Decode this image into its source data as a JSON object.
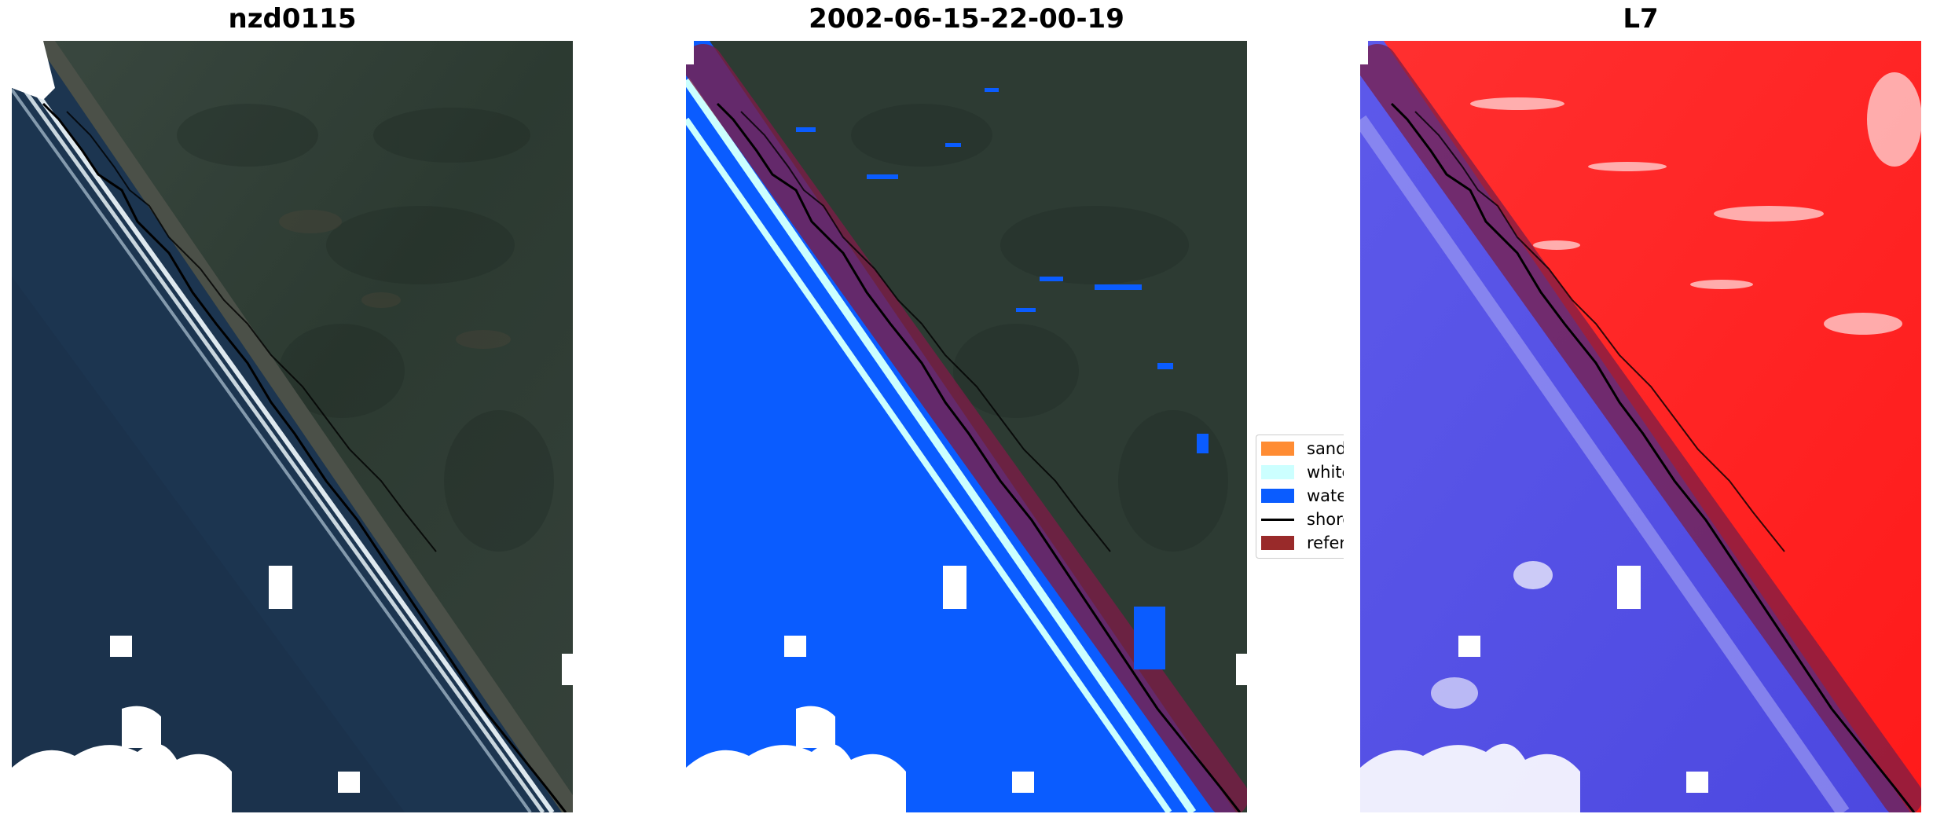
{
  "panels": [
    {
      "title": "nzd0115",
      "view": "rgb"
    },
    {
      "title": "2002-06-15-22-00-19",
      "view": "classification"
    },
    {
      "title": "L7",
      "view": "index"
    }
  ],
  "legend": {
    "items": [
      {
        "label": "sand",
        "color": "#ff8c33",
        "kind": "patch"
      },
      {
        "label": "whitew",
        "color": "#ccffff",
        "kind": "patch"
      },
      {
        "label": "water",
        "color": "#0a5cff",
        "kind": "patch"
      },
      {
        "label": "shorel",
        "color": "#000000",
        "kind": "line"
      },
      {
        "label": "referen",
        "color": "#992a2a",
        "kind": "patch"
      }
    ]
  },
  "colors": {
    "land": "#2b3a33",
    "sea": "#1d3550",
    "surf": "#dfe9ef",
    "water_class": "#0a5cff",
    "reference_buffer": "#7a1d46",
    "index_positive": "#ff2424",
    "index_negative": "#5a55e6"
  }
}
